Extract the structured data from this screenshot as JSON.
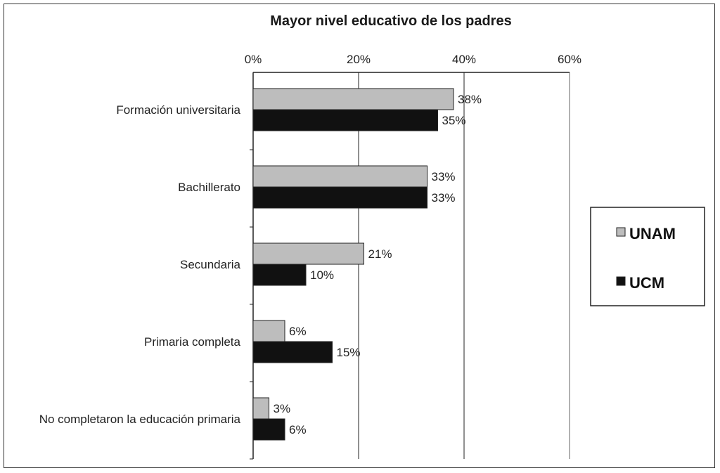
{
  "chart_data": {
    "type": "bar",
    "orientation": "horizontal",
    "title": "Mayor nivel educativo de los padres",
    "categories": [
      "Formación universitaria",
      "Bachillerato",
      "Secundaria",
      "Primaria completa",
      "No completaron la educación primaria"
    ],
    "series": [
      {
        "name": "UNAM",
        "values": [
          38,
          33,
          21,
          6,
          3
        ],
        "labels": [
          "38%",
          "33%",
          "21%",
          "6%",
          "3%"
        ],
        "color": "#bdbdbd"
      },
      {
        "name": "UCM",
        "values": [
          35,
          33,
          10,
          15,
          6
        ],
        "labels": [
          "35%",
          "33%",
          "10%",
          "15%",
          "6%"
        ],
        "color": "#111111"
      }
    ],
    "x_ticks": [
      0,
      20,
      40,
      60
    ],
    "x_tick_labels": [
      "0%",
      "20%",
      "40%",
      "60%"
    ],
    "xlim": [
      0,
      60
    ],
    "grid": true,
    "legend_position": "right"
  }
}
